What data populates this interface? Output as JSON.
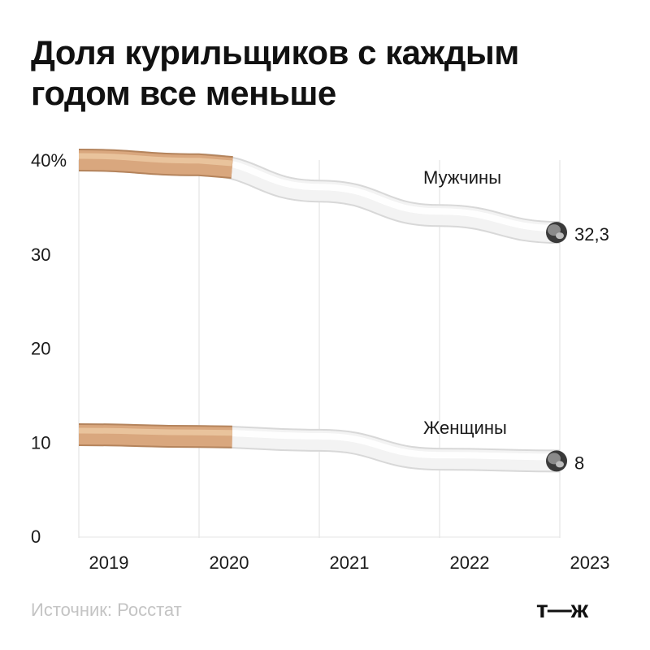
{
  "title": {
    "line1": "Доля курильщиков с каждым",
    "line2": "годом все меньше"
  },
  "source": "Источник: Росстат",
  "logo": "т—ж",
  "colors": {
    "filter": "#d9a77e",
    "paper": "#f3f3f3",
    "paper_shade": "#d8d8d8",
    "ash": "#8a8a8a",
    "grid": "#e4e4e4"
  },
  "chart_data": {
    "type": "line",
    "title": "Доля курильщиков с каждым годом все меньше",
    "x": [
      "2019",
      "2020",
      "2021",
      "2022",
      "2023"
    ],
    "ylim": [
      0,
      40
    ],
    "y_ticks": [
      "0",
      "10",
      "20",
      "30",
      "40%"
    ],
    "y_tick_values": [
      0,
      10,
      20,
      30,
      40
    ],
    "grid": "vertical",
    "series": [
      {
        "name": "Мужчины",
        "values": [
          40,
          39.5,
          36.7,
          34.1,
          32.3
        ],
        "end_label": "32,3"
      },
      {
        "name": "Женщины",
        "values": [
          10.8,
          10.6,
          10.2,
          8.2,
          8
        ],
        "end_label": "8"
      }
    ]
  }
}
